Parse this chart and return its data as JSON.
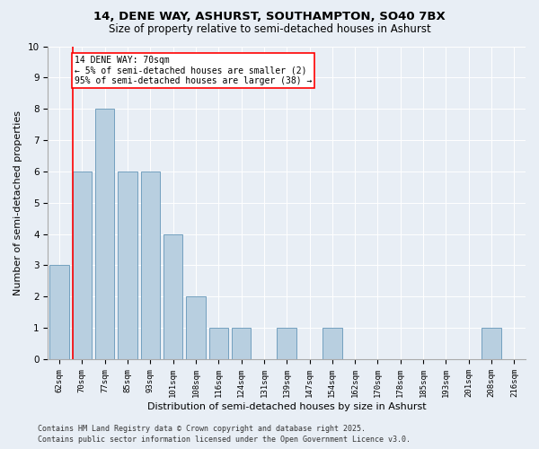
{
  "title_line1": "14, DENE WAY, ASHURST, SOUTHAMPTON, SO40 7BX",
  "title_line2": "Size of property relative to semi-detached houses in Ashurst",
  "xlabel": "Distribution of semi-detached houses by size in Ashurst",
  "ylabel": "Number of semi-detached properties",
  "categories": [
    "62sqm",
    "70sqm",
    "77sqm",
    "85sqm",
    "93sqm",
    "101sqm",
    "108sqm",
    "116sqm",
    "124sqm",
    "131sqm",
    "139sqm",
    "147sqm",
    "154sqm",
    "162sqm",
    "170sqm",
    "178sqm",
    "185sqm",
    "193sqm",
    "201sqm",
    "208sqm",
    "216sqm"
  ],
  "values": [
    3,
    6,
    8,
    6,
    6,
    4,
    2,
    1,
    1,
    0,
    1,
    0,
    1,
    0,
    0,
    0,
    0,
    0,
    0,
    1,
    0
  ],
  "bar_color": "#b8cfe0",
  "bar_edge_color": "#6496b8",
  "ylim": [
    0,
    10
  ],
  "yticks": [
    0,
    1,
    2,
    3,
    4,
    5,
    6,
    7,
    8,
    9,
    10
  ],
  "annotation_text": "14 DENE WAY: 70sqm\n← 5% of semi-detached houses are smaller (2)\n95% of semi-detached houses are larger (38) →",
  "annotation_box_color": "white",
  "annotation_box_edge": "red",
  "vline_color": "red",
  "vline_index": 1,
  "footer_line1": "Contains HM Land Registry data © Crown copyright and database right 2025.",
  "footer_line2": "Contains public sector information licensed under the Open Government Licence v3.0.",
  "bg_color": "#e8eef5",
  "plot_bg_color": "#e8eef5",
  "grid_color": "white",
  "title_fontsize": 9.5,
  "subtitle_fontsize": 8.5,
  "axis_label_fontsize": 8,
  "tick_fontsize": 6.5,
  "annotation_fontsize": 7,
  "footer_fontsize": 6
}
